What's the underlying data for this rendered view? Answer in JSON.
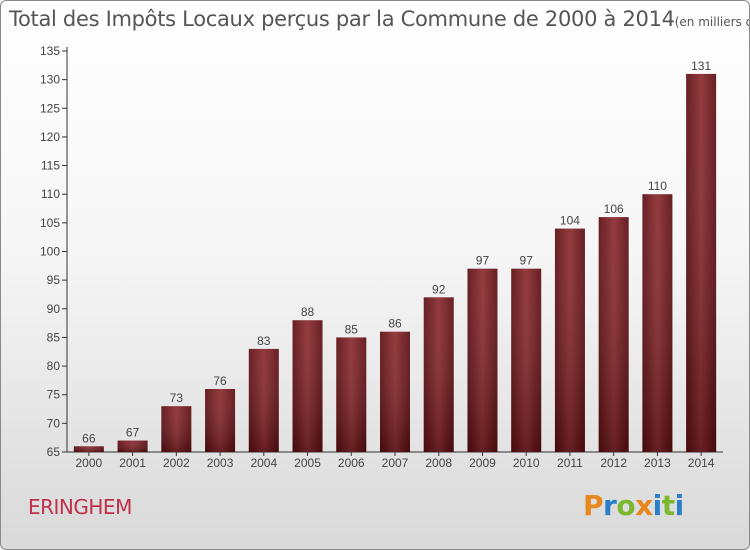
{
  "chart_data": {
    "type": "bar",
    "title": "Total des Impôts Locaux perçus par la Commune de 2000 à 2014",
    "title_unit": "(en milliers d'€)",
    "categories": [
      "2000",
      "2001",
      "2002",
      "2003",
      "2004",
      "2005",
      "2006",
      "2007",
      "2008",
      "2009",
      "2010",
      "2011",
      "2012",
      "2013",
      "2014"
    ],
    "values": [
      66,
      67,
      73,
      76,
      83,
      88,
      85,
      86,
      92,
      97,
      97,
      104,
      106,
      110,
      131
    ],
    "ylim": [
      65,
      135
    ],
    "yticks": [
      65,
      70,
      75,
      80,
      85,
      90,
      95,
      100,
      105,
      110,
      115,
      120,
      125,
      130,
      135
    ],
    "xlabel": "",
    "ylabel": "",
    "grid": false,
    "bar_color": "#7a1a1e"
  },
  "commune": "ERINGHEM",
  "logo": {
    "letters": [
      "P",
      "r",
      "o",
      "x",
      "i",
      "t",
      "i"
    ],
    "colors": [
      "#e8871e",
      "#2b7fc8",
      "#7cb82f",
      "#e8871e",
      "#2b7fc8",
      "#7cb82f",
      "#2b7fc8"
    ]
  }
}
